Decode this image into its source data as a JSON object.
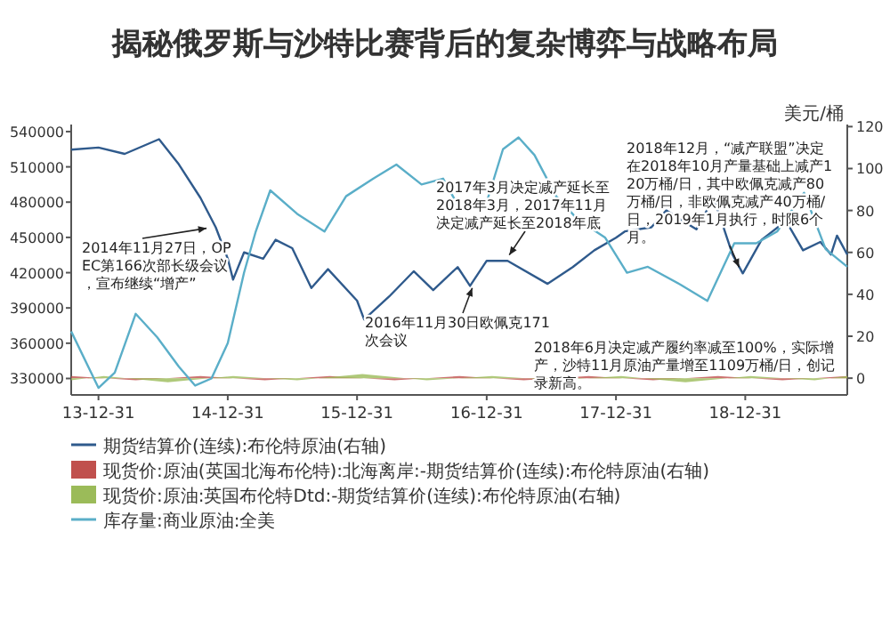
{
  "chart_data": {
    "type": "line",
    "title": "揭秘俄罗斯与沙特比赛背后的复杂博弈与战略布局",
    "y2label": "美元/桶",
    "xlim": [
      "2013-10-15",
      "2019-10-15"
    ],
    "xticks": [
      {
        "value": "2013-12-31",
        "label": "13-12-31"
      },
      {
        "value": "2014-12-31",
        "label": "14-12-31"
      },
      {
        "value": "2015-12-31",
        "label": "15-12-31"
      },
      {
        "value": "2016-12-31",
        "label": "16-12-31"
      },
      {
        "value": "2017-12-31",
        "label": "17-12-31"
      },
      {
        "value": "2018-12-31",
        "label": "18-12-31"
      }
    ],
    "ylim": [
      316000,
      546000
    ],
    "yticks": [
      330000,
      360000,
      390000,
      420000,
      450000,
      480000,
      510000,
      540000
    ],
    "y2lim": [
      -8,
      121
    ],
    "y2ticks": [
      0,
      20,
      40,
      60,
      80,
      100,
      120
    ],
    "legend": "bottom",
    "grid": false,
    "series": [
      {
        "name": "期货结算价(连续):布伦特原油(右轴)",
        "color": "#2f5a8c",
        "axis": "y2",
        "x": [
          "2013-10-15",
          "2013-12-31",
          "2014-03-15",
          "2014-06-20",
          "2014-08-15",
          "2014-10-15",
          "2014-11-27",
          "2014-12-31",
          "2015-01-15",
          "2015-02-15",
          "2015-04-10",
          "2015-05-15",
          "2015-07-01",
          "2015-08-24",
          "2015-10-10",
          "2015-12-31",
          "2016-01-20",
          "2016-03-31",
          "2016-06-08",
          "2016-08-02",
          "2016-10-10",
          "2016-11-14",
          "2016-12-31",
          "2017-02-28",
          "2017-06-21",
          "2017-08-31",
          "2017-10-31",
          "2017-12-31",
          "2018-01-25",
          "2018-04-10",
          "2018-05-22",
          "2018-08-15",
          "2018-10-03",
          "2018-11-25",
          "2018-12-24",
          "2019-02-15",
          "2019-04-25",
          "2019-06-12",
          "2019-07-31",
          "2019-08-30",
          "2019-09-16",
          "2019-10-15"
        ],
        "values": [
          109,
          110,
          107,
          114,
          102,
          86,
          72,
          57,
          47,
          60,
          57,
          66,
          62,
          43,
          52,
          37,
          28,
          39,
          51,
          42,
          53,
          44,
          56,
          56,
          45,
          53,
          61,
          67,
          70,
          72,
          80,
          71,
          86,
          59,
          50,
          66,
          75,
          61,
          65,
          59,
          68,
          59
        ]
      },
      {
        "name": "现货价:原油(英国北海布伦特):北海离岸:-期货结算价(连续):布伦特原油(右轴)",
        "type": "area",
        "color": "#c0504d",
        "axis": "y2",
        "x": [
          "2013-10-15",
          "2014-04-15",
          "2014-10-15",
          "2015-04-15",
          "2015-10-15",
          "2016-04-15",
          "2016-10-15",
          "2017-04-15",
          "2017-10-15",
          "2018-04-15",
          "2018-10-15",
          "2019-04-15",
          "2019-10-15"
        ],
        "values": [
          1,
          -1,
          1,
          -1,
          1,
          -1,
          1,
          -1,
          1,
          -1,
          1,
          -1,
          1
        ]
      },
      {
        "name": "现货价:原油:英国布伦特Dtd:-期货结算价(连续):布伦特原油(右轴)",
        "type": "area",
        "color": "#9bbb59",
        "axis": "y2",
        "x": [
          "2013-10-15",
          "2014-01-15",
          "2014-07-15",
          "2015-01-15",
          "2015-07-15",
          "2016-01-15",
          "2016-07-15",
          "2017-01-15",
          "2017-07-15",
          "2018-01-15",
          "2018-07-15",
          "2019-01-15",
          "2019-07-15",
          "2019-10-15"
        ],
        "values": [
          -1,
          1,
          -2,
          1,
          -1,
          2,
          -1,
          1,
          -1,
          1,
          -2,
          1,
          -1,
          1
        ]
      },
      {
        "name": "库存量:商业原油:全美",
        "color": "#5aaec8",
        "x": [
          "2013-10-15",
          "2013-12-31",
          "2014-02-15",
          "2014-04-15",
          "2014-06-15",
          "2014-08-15",
          "2014-09-30",
          "2014-11-15",
          "2014-12-31",
          "2015-02-15",
          "2015-03-20",
          "2015-04-30",
          "2015-07-15",
          "2015-09-30",
          "2015-11-30",
          "2016-02-15",
          "2016-04-20",
          "2016-06-30",
          "2016-08-30",
          "2016-10-15",
          "2016-12-31",
          "2017-02-15",
          "2017-03-31",
          "2017-05-15",
          "2017-07-15",
          "2017-09-15",
          "2017-11-30",
          "2018-01-31",
          "2018-03-31",
          "2018-06-30",
          "2018-09-15",
          "2018-11-30",
          "2019-01-31",
          "2019-03-31",
          "2019-06-15",
          "2019-08-15",
          "2019-10-15"
        ],
        "values": [
          370000,
          322000,
          335000,
          385000,
          365000,
          340000,
          324000,
          330000,
          360000,
          420000,
          455000,
          490000,
          470000,
          455000,
          485000,
          500000,
          512000,
          495000,
          500000,
          475000,
          480000,
          525000,
          535000,
          520000,
          485000,
          465000,
          450000,
          420000,
          425000,
          410000,
          396000,
          445000,
          445000,
          455000,
          488000,
          440000,
          425000
        ]
      }
    ],
    "annotations": [
      "2014年11月27日，OPEC第166次部长级会议，宣布继续“增产”",
      "2016年11月30日欧佩克171次会议",
      "2017年3月决定减产延长至2018年3月，2017年11月决定减产延长至2018年底",
      "2018年12月，“减产联盟”决定在2018年10月产量基础上减产120万桶/日，其中欧佩克减产80万桶/日，非欧佩克减产40万桶/日，2019年1月执行，时限6个月。",
      "2018年6月决定减产履约率减至100%，实际增产，沙特11月原油产量增至1109万桶/日，创记录新高。"
    ]
  }
}
